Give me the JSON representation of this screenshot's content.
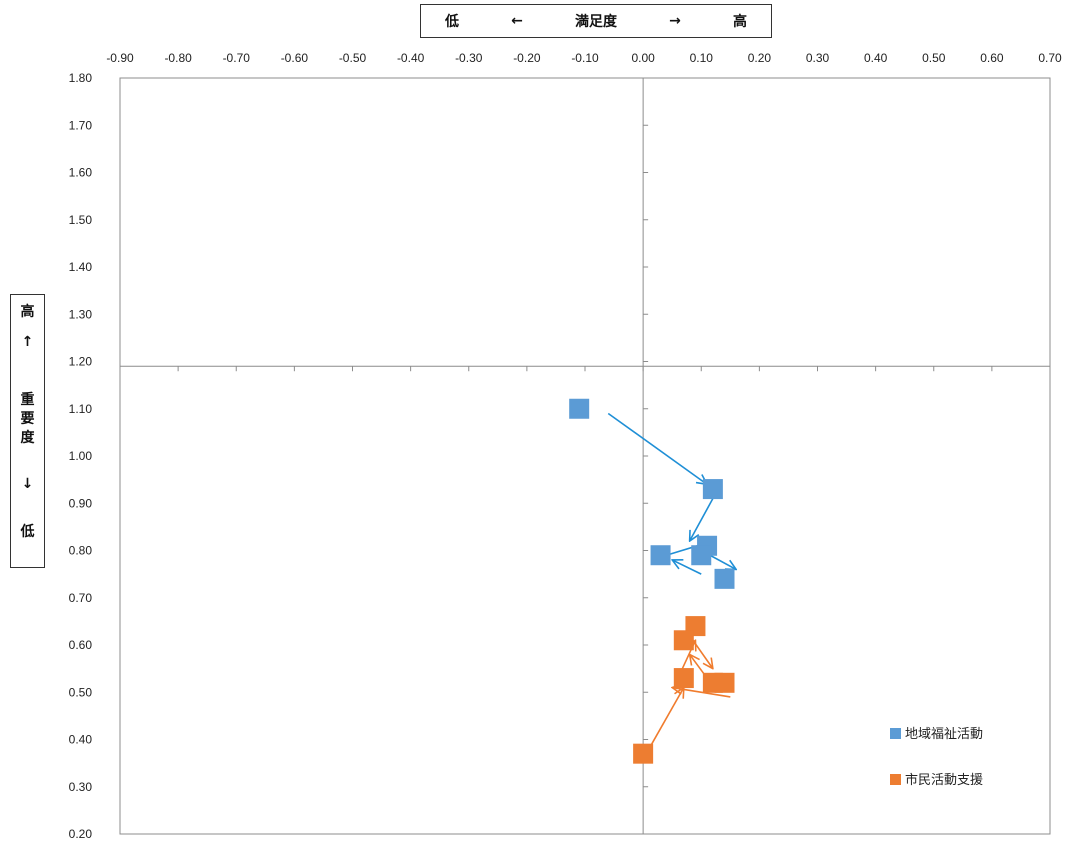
{
  "x_title": {
    "low": "低",
    "left_arrow": "←",
    "label": "満足度",
    "right_arrow": "→",
    "high": "高"
  },
  "y_title": {
    "high": "高",
    "up_arrow": "↑",
    "label_1": "重",
    "label_2": "要",
    "label_3": "度",
    "down_arrow": "↓",
    "low": "低"
  },
  "chart_data": {
    "type": "scatter",
    "title": "",
    "xlabel": "低 ← 満足度 → 高",
    "ylabel": "高 ↑ 重要度 ↓ 低",
    "xlim": [
      -0.9,
      0.7
    ],
    "ylim": [
      0.2,
      1.8
    ],
    "x_ticks": [
      "-0.90",
      "-0.80",
      "-0.70",
      "-0.60",
      "-0.50",
      "-0.40",
      "-0.30",
      "-0.20",
      "-0.10",
      "0.00",
      "0.10",
      "0.20",
      "0.30",
      "0.40",
      "0.50",
      "0.60",
      "0.70"
    ],
    "y_ticks": [
      "1.80",
      "1.70",
      "1.60",
      "1.50",
      "1.40",
      "1.30",
      "1.20",
      "1.10",
      "1.00",
      "0.90",
      "0.80",
      "0.70",
      "0.60",
      "0.50",
      "0.40",
      "0.30",
      "0.20"
    ],
    "crosshair": {
      "x": 0.0,
      "y": 1.19
    },
    "grid": false,
    "legend_position": "bottom-right",
    "series": [
      {
        "name": "地域福祉活動",
        "color": "#5b9bd5",
        "arrow_color": "#1f8fd6",
        "marker": "square",
        "points": [
          [
            -0.11,
            1.1
          ],
          [
            0.12,
            0.93
          ],
          [
            0.03,
            0.79
          ],
          [
            0.11,
            0.81
          ],
          [
            0.1,
            0.79
          ],
          [
            0.14,
            0.74
          ]
        ],
        "arrows": [
          [
            [
              -0.06,
              1.09
            ],
            [
              0.11,
              0.94
            ]
          ],
          [
            [
              0.12,
              0.91
            ],
            [
              0.08,
              0.82
            ]
          ],
          [
            [
              0.1,
              0.75
            ],
            [
              0.05,
              0.78
            ]
          ],
          [
            [
              0.04,
              0.79
            ],
            [
              0.12,
              0.82
            ]
          ],
          [
            [
              0.1,
              0.8
            ],
            [
              0.16,
              0.76
            ]
          ]
        ]
      },
      {
        "name": "市民活動支援",
        "color": "#ed7d31",
        "arrow_color": "#f07c2e",
        "marker": "square",
        "points": [
          [
            0.0,
            0.37
          ],
          [
            0.07,
            0.53
          ],
          [
            0.09,
            0.64
          ],
          [
            0.07,
            0.61
          ],
          [
            0.12,
            0.52
          ],
          [
            0.14,
            0.52
          ]
        ],
        "arrows": [
          [
            [
              0.01,
              0.38
            ],
            [
              0.07,
              0.51
            ]
          ],
          [
            [
              0.06,
              0.53
            ],
            [
              0.09,
              0.61
            ]
          ],
          [
            [
              0.08,
              0.62
            ],
            [
              0.12,
              0.55
            ]
          ],
          [
            [
              0.11,
              0.53
            ],
            [
              0.08,
              0.58
            ]
          ],
          [
            [
              0.15,
              0.49
            ],
            [
              0.05,
              0.51
            ]
          ]
        ]
      }
    ]
  }
}
